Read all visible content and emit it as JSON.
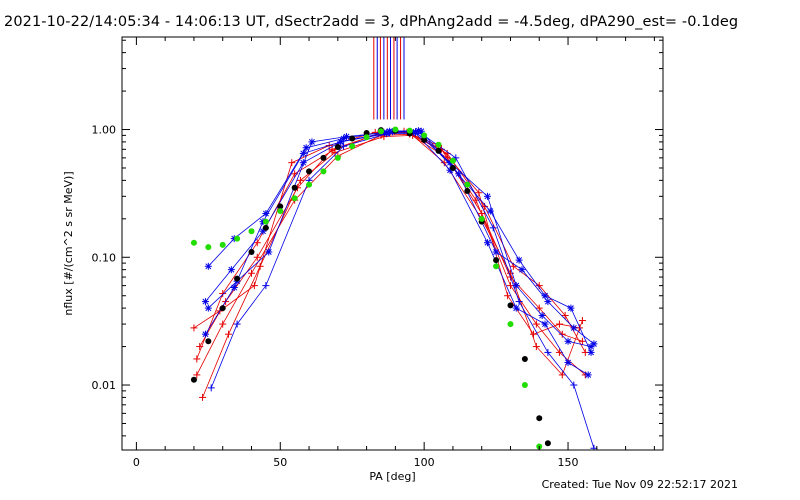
{
  "header": {
    "title": "2021-10-22/14:05:34 - 14:06:13 UT, dSectr2add = 3, dPhAng2add = -4.5deg, dPA290_est= -0.1deg"
  },
  "footer": {
    "created": "Created: Tue Nov 09 22:52:17 2021"
  },
  "chart_data": {
    "type": "scatter",
    "title": "2021-10-22/14:05:34 - 14:06:13 UT, dSectr2add = 3, dPhAng2add = -4.5deg, dPA290_est= -0.1deg",
    "xlabel": "PA [deg]",
    "ylabel": "nflux [#/(cm^2 s sr MeV)]",
    "xlim": [
      -5,
      183
    ],
    "ylim": [
      0.0031,
      5.3
    ],
    "yscale": "log",
    "x_ticks": [
      0,
      50,
      100,
      150
    ],
    "x_tick_labels": [
      "0",
      "50",
      "100",
      "150"
    ],
    "y_ticks": [
      0.01,
      0.1,
      1.0
    ],
    "y_tick_labels": [
      "0.01",
      "0.10",
      "1.00"
    ],
    "grid": false,
    "colors": {
      "red": "#e60000",
      "blue": "#0000e6",
      "black": "#000000",
      "green": "#22dd00"
    },
    "vertical_markers": {
      "x": [
        82.5,
        83.7,
        84.8,
        86.0,
        87.2,
        88.3,
        89.5,
        90.6,
        91.8,
        93.0
      ],
      "colors": [
        "red",
        "blue",
        "red",
        "blue",
        "red",
        "blue",
        "red",
        "blue",
        "red",
        "blue"
      ],
      "y_from": 1.2,
      "y_to": 5.3
    },
    "series": [
      {
        "color": "red",
        "marker": "plus",
        "x": [
          21,
          30,
          40,
          55,
          70,
          85,
          95,
          108,
          120,
          130,
          140,
          148,
          155
        ],
        "y": [
          0.012,
          0.03,
          0.075,
          0.28,
          0.62,
          0.9,
          0.92,
          0.6,
          0.22,
          0.07,
          0.04,
          0.025,
          0.022
        ]
      },
      {
        "color": "red",
        "marker": "plus",
        "x": [
          22,
          31,
          42,
          56,
          68,
          84,
          94,
          106,
          118,
          130,
          139,
          147,
          156
        ],
        "y": [
          0.02,
          0.045,
          0.1,
          0.35,
          0.7,
          0.92,
          0.95,
          0.7,
          0.28,
          0.06,
          0.03,
          0.018,
          0.012
        ]
      },
      {
        "color": "red",
        "marker": "plus",
        "x": [
          20,
          29,
          41,
          54,
          67,
          83,
          93,
          105,
          119,
          129,
          138,
          147,
          154
        ],
        "y": [
          0.028,
          0.038,
          0.06,
          0.55,
          0.75,
          0.95,
          0.97,
          0.75,
          0.32,
          0.05,
          0.025,
          0.03,
          0.028
        ]
      },
      {
        "color": "red",
        "marker": "plus",
        "x": [
          23,
          32,
          43,
          57,
          69,
          86,
          96,
          108,
          121,
          131,
          140,
          149,
          156
        ],
        "y": [
          0.008,
          0.025,
          0.085,
          0.4,
          0.66,
          0.88,
          0.9,
          0.65,
          0.25,
          0.085,
          0.06,
          0.035,
          0.018
        ]
      },
      {
        "color": "red",
        "marker": "plus",
        "x": [
          21,
          30,
          42,
          55,
          68,
          84,
          95,
          107,
          120,
          130,
          139,
          148,
          155
        ],
        "y": [
          0.016,
          0.052,
          0.13,
          0.45,
          0.68,
          0.93,
          0.94,
          0.55,
          0.2,
          0.075,
          0.02,
          0.012,
          0.032
        ]
      },
      {
        "color": "blue",
        "marker": "asterisk",
        "x": [
          24,
          33,
          44,
          58,
          71,
          87,
          97,
          109,
          122,
          132,
          141,
          150,
          158
        ],
        "y": [
          0.045,
          0.08,
          0.16,
          0.55,
          0.8,
          0.95,
          0.96,
          0.55,
          0.3,
          0.06,
          0.035,
          0.022,
          0.02
        ]
      },
      {
        "color": "blue",
        "marker": "asterisk",
        "x": [
          25,
          34,
          45,
          59,
          72,
          88,
          98,
          110,
          123,
          133,
          142,
          151,
          158
        ],
        "y": [
          0.085,
          0.14,
          0.22,
          0.72,
          0.85,
          0.97,
          0.98,
          0.5,
          0.23,
          0.095,
          0.05,
          0.04,
          0.018
        ]
      },
      {
        "color": "blue",
        "marker": "plus",
        "x": [
          26,
          35,
          45,
          60,
          72,
          88,
          99,
          111,
          124,
          133,
          143,
          152,
          159
        ],
        "y": [
          0.0095,
          0.03,
          0.06,
          0.4,
          0.74,
          0.94,
          0.93,
          0.6,
          0.17,
          0.045,
          0.018,
          0.01,
          0.0032
        ]
      },
      {
        "color": "blue",
        "marker": "asterisk",
        "x": [
          24,
          34,
          44,
          58,
          71,
          87,
          97,
          109,
          122,
          132,
          142,
          150,
          157
        ],
        "y": [
          0.025,
          0.058,
          0.19,
          0.65,
          0.8,
          0.93,
          0.94,
          0.48,
          0.13,
          0.04,
          0.03,
          0.015,
          0.012
        ]
      },
      {
        "color": "blue",
        "marker": "asterisk",
        "x": [
          25,
          35,
          46,
          61,
          73,
          89,
          99,
          112,
          125,
          134,
          143,
          152,
          159
        ],
        "y": [
          0.04,
          0.065,
          0.11,
          0.8,
          0.88,
          0.96,
          0.97,
          0.45,
          0.11,
          0.08,
          0.045,
          0.028,
          0.021
        ]
      },
      {
        "color": "black",
        "marker": "dot",
        "x": [
          20,
          25,
          30,
          35,
          40,
          45,
          50,
          55,
          60,
          65,
          70,
          75,
          80,
          85,
          90,
          95,
          100,
          105,
          110,
          115,
          120,
          125,
          130,
          135,
          140,
          143
        ],
        "y": [
          0.011,
          0.022,
          0.04,
          0.068,
          0.11,
          0.17,
          0.25,
          0.35,
          0.47,
          0.6,
          0.73,
          0.85,
          0.94,
          0.99,
          0.98,
          0.93,
          0.83,
          0.68,
          0.5,
          0.33,
          0.19,
          0.095,
          0.042,
          0.016,
          0.0055,
          0.0035
        ]
      },
      {
        "color": "green",
        "marker": "dot",
        "x": [
          20,
          25,
          30,
          35,
          40,
          45,
          50,
          55,
          60,
          65,
          70,
          75,
          80,
          85,
          90,
          95,
          100,
          105,
          110,
          115,
          120,
          125,
          130,
          135,
          140
        ],
        "y": [
          0.13,
          0.12,
          0.125,
          0.14,
          0.16,
          0.19,
          0.23,
          0.29,
          0.37,
          0.47,
          0.6,
          0.74,
          0.87,
          0.97,
          1.0,
          0.98,
          0.9,
          0.76,
          0.57,
          0.37,
          0.2,
          0.085,
          0.03,
          0.01,
          0.0033
        ]
      }
    ]
  }
}
